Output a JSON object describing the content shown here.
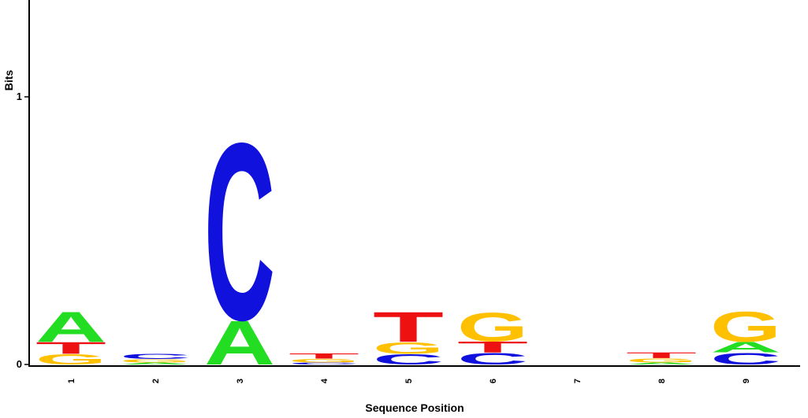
{
  "chart_data": {
    "type": "sequence-logo",
    "ylabel": "Bits",
    "xlabel": "Sequence Position",
    "ylim": [
      0,
      1.35
    ],
    "yticks": [
      0,
      1
    ],
    "ytick_labels": [
      "0",
      "1"
    ],
    "colors": {
      "A": "#22dd22",
      "C": "#1111dd",
      "G": "#ffc000",
      "T": "#ee1111"
    },
    "positions": [
      {
        "label": "1",
        "stack": [
          {
            "base": "G",
            "height": 0.04
          },
          {
            "base": "T",
            "height": 0.045
          },
          {
            "base": "A",
            "height": 0.115
          }
        ]
      },
      {
        "label": "2",
        "stack": [
          {
            "base": "A",
            "height": 0.008
          },
          {
            "base": "G",
            "height": 0.012
          },
          {
            "base": "C",
            "height": 0.02
          }
        ]
      },
      {
        "label": "3",
        "stack": [
          {
            "base": "A",
            "height": 0.17
          },
          {
            "base": "C",
            "height": 0.68
          }
        ]
      },
      {
        "label": "4",
        "stack": [
          {
            "base": "C",
            "height": 0.008
          },
          {
            "base": "G",
            "height": 0.014
          },
          {
            "base": "T",
            "height": 0.02
          }
        ]
      },
      {
        "label": "5",
        "stack": [
          {
            "base": "C",
            "height": 0.04
          },
          {
            "base": "G",
            "height": 0.045
          },
          {
            "base": "T",
            "height": 0.115
          }
        ]
      },
      {
        "label": "6",
        "stack": [
          {
            "base": "C",
            "height": 0.045
          },
          {
            "base": "T",
            "height": 0.042
          },
          {
            "base": "G",
            "height": 0.11
          }
        ]
      },
      {
        "label": "7",
        "stack": []
      },
      {
        "label": "8",
        "stack": [
          {
            "base": "A",
            "height": 0.008
          },
          {
            "base": "G",
            "height": 0.016
          },
          {
            "base": "T",
            "height": 0.022
          }
        ]
      },
      {
        "label": "9",
        "stack": [
          {
            "base": "C",
            "height": 0.045
          },
          {
            "base": "A",
            "height": 0.04
          },
          {
            "base": "G",
            "height": 0.115
          }
        ]
      }
    ]
  }
}
